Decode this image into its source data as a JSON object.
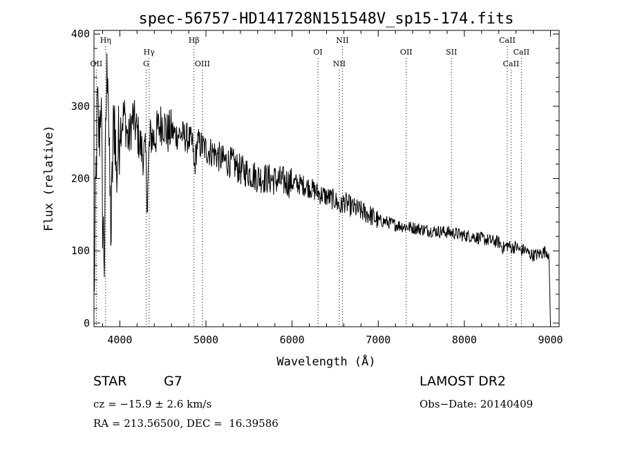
{
  "chart_data": {
    "type": "line",
    "title": "spec-56757-HD141728N151548V_sp15-174.fits",
    "xlabel": "Wavelength (Å)",
    "ylabel": "Flux (relative)",
    "xlim": [
      3700,
      9100
    ],
    "ylim": [
      -5,
      405
    ],
    "x_ticks": [
      4000,
      5000,
      6000,
      7000,
      8000,
      9000
    ],
    "y_ticks": [
      0,
      100,
      200,
      300,
      400
    ],
    "grid": false,
    "line_color": "#000000",
    "series": [
      {
        "x": [
          3700,
          3720,
          3740,
          3760,
          3780,
          3800,
          3820,
          3840,
          3860,
          3880,
          3900,
          3920,
          3940,
          3960,
          3980,
          4000,
          4050,
          4100,
          4150,
          4200,
          4250,
          4300,
          4320,
          4340,
          4360,
          4400,
          4450,
          4500,
          4550,
          4600,
          4650,
          4700,
          4750,
          4800,
          4850,
          4861,
          4900,
          4950,
          5000,
          5100,
          5200,
          5300,
          5400,
          5500,
          5600,
          5700,
          5800,
          5900,
          6000,
          6100,
          6200,
          6300,
          6400,
          6500,
          6563,
          6600,
          6700,
          6800,
          6900,
          7000,
          7100,
          7200,
          7300,
          7400,
          7500,
          7600,
          7700,
          7800,
          7900,
          8000,
          8100,
          8200,
          8300,
          8400,
          8450,
          8500,
          8550,
          8600,
          8650,
          8700,
          8750,
          8800,
          8850,
          8900,
          8950,
          8980,
          9000
        ],
        "y": [
          30,
          180,
          300,
          250,
          320,
          150,
          90,
          290,
          380,
          200,
          120,
          250,
          290,
          200,
          240,
          270,
          290,
          250,
          285,
          265,
          240,
          230,
          170,
          240,
          260,
          255,
          270,
          280,
          262,
          266,
          260,
          262,
          258,
          255,
          245,
          210,
          250,
          245,
          240,
          235,
          225,
          222,
          212,
          208,
          202,
          200,
          198,
          196,
          194,
          192,
          188,
          180,
          175,
          170,
          160,
          168,
          160,
          155,
          150,
          142,
          140,
          136,
          134,
          132,
          130,
          128,
          127,
          126,
          124,
          121,
          120,
          117,
          114,
          112,
          104,
          108,
          104,
          106,
          100,
          102,
          96,
          94,
          95,
          97,
          100,
          95,
          0
        ]
      }
    ],
    "line_markers": [
      {
        "label": "OII",
        "x": 3727,
        "row": 2
      },
      {
        "label": "Hη",
        "x": 3835,
        "row": 0
      },
      {
        "label": "Hγ",
        "x": 4340,
        "row": 1
      },
      {
        "label": "G",
        "x": 4305,
        "row": 2
      },
      {
        "label": "Hβ",
        "x": 4861,
        "row": 0
      },
      {
        "label": "OIII",
        "x": 4959,
        "row": 2
      },
      {
        "label": "OI",
        "x": 6300,
        "row": 1
      },
      {
        "label": "NII",
        "x": 6584,
        "row": 0
      },
      {
        "label": "NII",
        "x": 6548,
        "row": 2
      },
      {
        "label": "OII",
        "x": 7325,
        "row": 1
      },
      {
        "label": "SII",
        "x": 7850,
        "row": 1
      },
      {
        "label": "CaII",
        "x": 8498,
        "row": 0
      },
      {
        "label": "CaII",
        "x": 8662,
        "row": 1
      },
      {
        "label": "CaII",
        "x": 8542,
        "row": 2
      }
    ]
  },
  "info": {
    "class_label": "STAR",
    "subclass": "G7",
    "survey": "LAMOST DR2",
    "cz": "cz = −15.9 ± 2.6 km/s",
    "obs_date": "Obs−Date: 20140409",
    "coords": "RA = 213.56500, DEC =  16.39586"
  }
}
